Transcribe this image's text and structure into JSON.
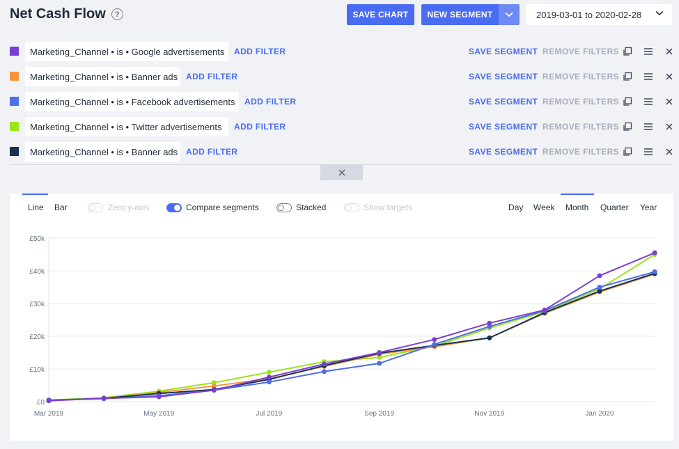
{
  "header": {
    "title": "Net Cash Flow",
    "help_glyph": "?",
    "save_chart": "SAVE CHART",
    "new_segment": "NEW SEGMENT",
    "date_range": "2019-03-01 to 2020-02-28"
  },
  "segments": [
    {
      "color": "#7b3fd4",
      "filter": "Marketing_Channel • is • Google advertisements",
      "add_filter": "ADD FILTER",
      "save": "SAVE SEGMENT",
      "remove": "REMOVE FILTERS"
    },
    {
      "color": "#f5953a",
      "filter": "Marketing_Channel • is • Banner ads",
      "add_filter": "ADD FILTER",
      "save": "SAVE SEGMENT",
      "remove": "REMOVE FILTERS"
    },
    {
      "color": "#4f6ee8",
      "filter": "Marketing_Channel • is • Facebook advertisements",
      "add_filter": "ADD FILTER",
      "save": "SAVE SEGMENT",
      "remove": "REMOVE FILTERS"
    },
    {
      "color": "#9be419",
      "filter": "Marketing_Channel • is • Twitter advertisements",
      "add_filter": "ADD FILTER",
      "save": "SAVE SEGMENT",
      "remove": "REMOVE FILTERS"
    },
    {
      "color": "#16324f",
      "filter": "Marketing_Channel • is • Banner ads",
      "add_filter": "ADD FILTER",
      "save": "SAVE SEGMENT",
      "remove": "REMOVE FILTERS"
    }
  ],
  "chart_options": {
    "type_tabs": [
      "Line",
      "Bar"
    ],
    "selected_type": "Line",
    "zero_y_axis": {
      "label": "Zero y-axis",
      "on": false,
      "disabled": true
    },
    "compare_segments": {
      "label": "Compare segments",
      "on": true
    },
    "stacked": {
      "label": "Stacked",
      "on": false
    },
    "show_targets": {
      "label": "Show targets",
      "on": false,
      "disabled": true
    },
    "granularity": [
      "Day",
      "Week",
      "Month",
      "Quarter",
      "Year"
    ],
    "selected_granularity": "Month"
  },
  "chart_data": {
    "type": "line",
    "title": "",
    "xlabel": "",
    "ylabel": "",
    "ylim": [
      0,
      50000
    ],
    "y_ticks": [
      "£0",
      "£10k",
      "£20k",
      "£30k",
      "£40k",
      "£50k"
    ],
    "x_tick_labels": [
      "Mar 2019",
      "May 2019",
      "Jul 2019",
      "Sep 2019",
      "Nov 2019",
      "Jan 2020"
    ],
    "categories": [
      "2019-03",
      "2019-04",
      "2019-05",
      "2019-06",
      "2019-07",
      "2019-08",
      "2019-09",
      "2019-10",
      "2019-11",
      "2019-12",
      "2020-01",
      "2020-02"
    ],
    "grid": true,
    "series": [
      {
        "color": "#9be419",
        "values": [
          500,
          1200,
          3200,
          5800,
          9000,
          12200,
          13500,
          17000,
          22500,
          27500,
          34500,
          45000
        ]
      },
      {
        "color": "#f5953a",
        "values": [
          300,
          1000,
          2800,
          4800,
          7000,
          10800,
          14500,
          16800,
          19500,
          27000,
          33500,
          39000
        ]
      },
      {
        "color": "#16324f",
        "values": [
          400,
          1000,
          2500,
          3700,
          6800,
          11000,
          14800,
          17200,
          19500,
          27200,
          33800,
          39200
        ]
      },
      {
        "color": "#4f6ee8",
        "values": [
          500,
          900,
          1800,
          3500,
          6000,
          9200,
          11700,
          17500,
          23000,
          27800,
          35000,
          39700
        ]
      },
      {
        "color": "#7b3fd4",
        "values": [
          300,
          1000,
          1500,
          3500,
          7500,
          11500,
          15000,
          19000,
          24000,
          28000,
          38500,
          45500
        ]
      }
    ]
  }
}
